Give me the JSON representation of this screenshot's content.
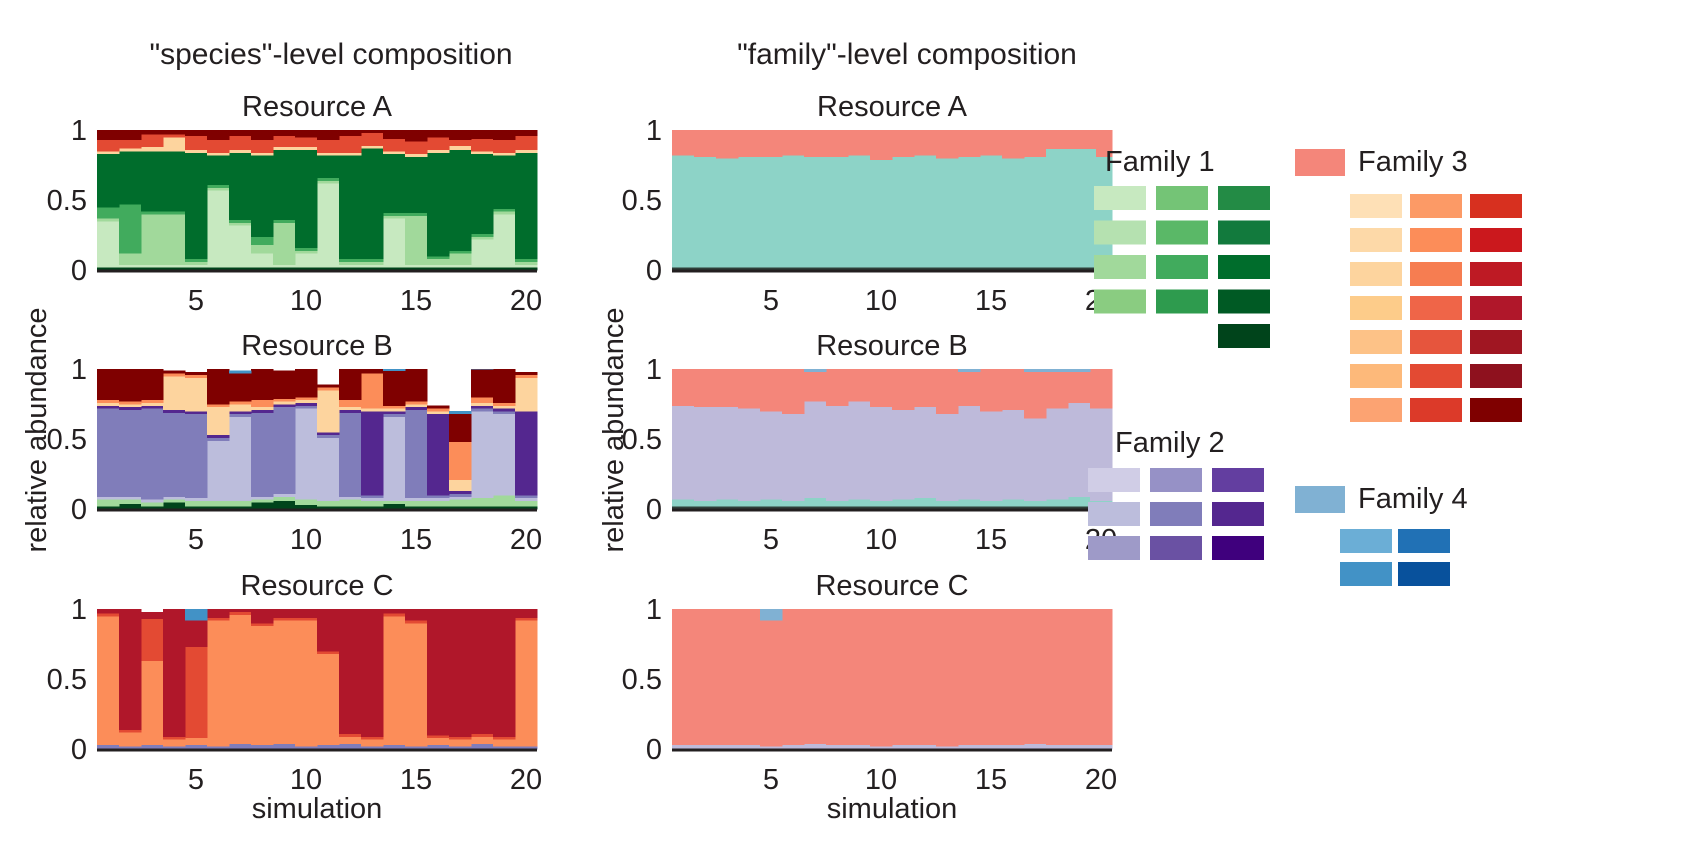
{
  "columns": [
    {
      "title": "\"species\"-level composition",
      "ylabel": "relative abundance",
      "xlabel": "simulation"
    },
    {
      "title": "\"family\"-level composition",
      "ylabel": "relative abundance",
      "xlabel": "simulation"
    }
  ],
  "yticks": [
    "0",
    "0.5",
    "1"
  ],
  "xticks": [
    "5",
    "10",
    "15",
    "20"
  ],
  "legend": {
    "families": [
      {
        "label": "Family 1",
        "color": "#8dd3c7",
        "swatch_columns": [
          [
            "#c7e9c0",
            "#b5e1b0",
            "#a1d99b",
            "#8acc81"
          ],
          [
            "#74c476",
            "#5ab867",
            "#41ab5d",
            "#2e9b4e"
          ],
          [
            "#238b45",
            "#127a3d",
            "#006d2c",
            "#005a24",
            "#00441b"
          ]
        ]
      },
      {
        "label": "Family 2",
        "color": "#bebada",
        "swatch_columns": [
          [
            "#d0cde6",
            "#bcbddc",
            "#9e9ac8"
          ],
          [
            "#9691c6",
            "#807dba",
            "#6a51a3"
          ],
          [
            "#633ea0",
            "#54278f",
            "#3f007d"
          ]
        ]
      },
      {
        "label": "Family 3",
        "color": "#f4867a",
        "swatch_columns": [
          [
            "#fee0b6",
            "#fdd9a8",
            "#fdd49e",
            "#fdcc8a",
            "#fdc287",
            "#fdb97a",
            "#fca372"
          ],
          [
            "#fc9a66",
            "#fc8d59",
            "#f67d51",
            "#ef6548",
            "#e6553d",
            "#e34a33",
            "#dc3a29"
          ],
          [
            "#d7301f",
            "#cb181d",
            "#be1a24",
            "#b0172a",
            "#a01622",
            "#8e111e",
            "#7f0000"
          ]
        ]
      },
      {
        "label": "Family 4",
        "color": "#80b1d3",
        "swatch_columns": [
          [
            "#6baed6",
            "#4292c6"
          ],
          [
            "#2171b5",
            "#08519c"
          ]
        ]
      }
    ]
  },
  "chart_data": [
    {
      "type": "area",
      "title": "Resource A",
      "column": 0,
      "row": 0,
      "xlabel": "",
      "ylabel": "relative abundance",
      "xlim": [
        0.5,
        20.5
      ],
      "ylim": [
        0,
        1
      ],
      "x": [
        1,
        2,
        3,
        4,
        5,
        6,
        7,
        8,
        9,
        10,
        11,
        12,
        13,
        14,
        15,
        16,
        17,
        18,
        19,
        20
      ],
      "series": [
        {
          "color": "#00441b",
          "values": [
            0.02,
            0.02,
            0.02,
            0.02,
            0.02,
            0.02,
            0.02,
            0.02,
            0.02,
            0.02,
            0.02,
            0.02,
            0.02,
            0.02,
            0.02,
            0.02,
            0.02,
            0.02,
            0.02,
            0.02
          ]
        },
        {
          "color": "#c7e9c0",
          "values": [
            0.33,
            0.02,
            0.02,
            0.02,
            0.02,
            0.55,
            0.3,
            0.1,
            0.02,
            0.1,
            0.6,
            0.02,
            0.02,
            0.35,
            0.02,
            0.02,
            0.02,
            0.2,
            0.38,
            0.02
          ]
        },
        {
          "color": "#a1d99b",
          "values": [
            0.02,
            0.08,
            0.36,
            0.36,
            0.02,
            0.02,
            0.02,
            0.06,
            0.3,
            0.02,
            0.02,
            0.02,
            0.02,
            0.02,
            0.35,
            0.04,
            0.08,
            0.02,
            0.02,
            0.02
          ]
        },
        {
          "color": "#41ab5d",
          "values": [
            0.08,
            0.35,
            0.02,
            0.02,
            0.02,
            0.02,
            0.02,
            0.06,
            0.02,
            0.02,
            0.02,
            0.02,
            0.02,
            0.02,
            0.02,
            0.02,
            0.02,
            0.02,
            0.02,
            0.02
          ]
        },
        {
          "color": "#006d2c",
          "values": [
            0.38,
            0.38,
            0.43,
            0.43,
            0.76,
            0.21,
            0.48,
            0.58,
            0.5,
            0.7,
            0.16,
            0.74,
            0.79,
            0.42,
            0.4,
            0.74,
            0.72,
            0.57,
            0.38,
            0.76
          ]
        },
        {
          "color": "#fdd49e",
          "values": [
            0.02,
            0.02,
            0.03,
            0.1,
            0.02,
            0.02,
            0.02,
            0.02,
            0.02,
            0.02,
            0.02,
            0.02,
            0.02,
            0.02,
            0.02,
            0.02,
            0.03,
            0.02,
            0.02,
            0.02
          ]
        },
        {
          "color": "#e34a33",
          "values": [
            0.08,
            0.06,
            0.09,
            0.02,
            0.1,
            0.09,
            0.1,
            0.09,
            0.08,
            0.07,
            0.09,
            0.12,
            0.09,
            0.09,
            0.09,
            0.09,
            0.04,
            0.09,
            0.09,
            0.1
          ]
        },
        {
          "color": "#7f0000",
          "values": [
            0.09,
            0.09,
            0.03,
            0.03,
            0.04,
            0.07,
            0.04,
            0.07,
            0.04,
            0.05,
            0.07,
            0.04,
            0.04,
            0.08,
            0.08,
            0.07,
            0.07,
            0.08,
            0.09,
            0.06
          ]
        }
      ]
    },
    {
      "type": "area",
      "title": "Resource B",
      "column": 0,
      "row": 1,
      "xlabel": "",
      "ylabel": "relative abundance",
      "xlim": [
        0.5,
        20.5
      ],
      "ylim": [
        0,
        1
      ],
      "x": [
        1,
        2,
        3,
        4,
        5,
        6,
        7,
        8,
        9,
        10,
        11,
        12,
        13,
        14,
        15,
        16,
        17,
        18,
        19,
        20
      ],
      "series": [
        {
          "color": "#00441b",
          "values": [
            0.02,
            0.04,
            0.02,
            0.05,
            0.02,
            0.02,
            0.02,
            0.05,
            0.06,
            0.03,
            0.02,
            0.02,
            0.02,
            0.04,
            0.02,
            0.02,
            0.02,
            0.02,
            0.02,
            0.02
          ]
        },
        {
          "color": "#a1d99b",
          "values": [
            0.05,
            0.03,
            0.03,
            0.02,
            0.04,
            0.04,
            0.04,
            0.02,
            0.03,
            0.04,
            0.04,
            0.05,
            0.04,
            0.02,
            0.04,
            0.04,
            0.05,
            0.06,
            0.08,
            0.04
          ]
        },
        {
          "color": "#bcbddc",
          "values": [
            0.02,
            0.02,
            0.02,
            0.02,
            0.02,
            0.43,
            0.6,
            0.02,
            0.02,
            0.65,
            0.45,
            0.02,
            0.02,
            0.6,
            0.02,
            0.02,
            0.02,
            0.62,
            0.58,
            0.02
          ]
        },
        {
          "color": "#807dba",
          "values": [
            0.63,
            0.62,
            0.65,
            0.6,
            0.6,
            0.02,
            0.02,
            0.6,
            0.62,
            0.02,
            0.02,
            0.6,
            0.02,
            0.02,
            0.63,
            0.02,
            0.02,
            0.02,
            0.02,
            0.02
          ]
        },
        {
          "color": "#54278f",
          "values": [
            0.02,
            0.02,
            0.02,
            0.02,
            0.02,
            0.02,
            0.02,
            0.02,
            0.02,
            0.02,
            0.02,
            0.02,
            0.6,
            0.02,
            0.02,
            0.58,
            0.02,
            0.02,
            0.02,
            0.6
          ]
        },
        {
          "color": "#fdd49e",
          "values": [
            0.02,
            0.02,
            0.02,
            0.24,
            0.24,
            0.2,
            0.05,
            0.02,
            0.02,
            0.02,
            0.3,
            0.02,
            0.02,
            0.02,
            0.02,
            0.02,
            0.08,
            0.02,
            0.02,
            0.24
          ]
        },
        {
          "color": "#fc8d59",
          "values": [
            0.02,
            0.02,
            0.02,
            0.02,
            0.02,
            0.02,
            0.02,
            0.05,
            0.02,
            0.02,
            0.02,
            0.05,
            0.25,
            0.02,
            0.02,
            0.02,
            0.27,
            0.04,
            0.02,
            0.02
          ]
        },
        {
          "color": "#7f0000",
          "values": [
            0.22,
            0.25,
            0.22,
            0.02,
            0.02,
            0.25,
            0.2,
            0.22,
            0.2,
            0.2,
            0.02,
            0.22,
            0.04,
            0.25,
            0.25,
            0.02,
            0.2,
            0.2,
            0.25,
            0.02
          ]
        },
        {
          "color": "#4292c6",
          "values": [
            0.0,
            0.0,
            0.0,
            0.0,
            0.0,
            0.0,
            0.02,
            0.0,
            0.0,
            0.0,
            0.0,
            0.0,
            0.0,
            0.02,
            0.0,
            0.0,
            0.02,
            0.02,
            0.01,
            0.0
          ]
        }
      ]
    },
    {
      "type": "area",
      "title": "Resource C",
      "column": 0,
      "row": 2,
      "xlabel": "simulation",
      "ylabel": "relative abundance",
      "xlim": [
        0.5,
        20.5
      ],
      "ylim": [
        0,
        1
      ],
      "x": [
        1,
        2,
        3,
        4,
        5,
        6,
        7,
        8,
        9,
        10,
        11,
        12,
        13,
        14,
        15,
        16,
        17,
        18,
        19,
        20
      ],
      "series": [
        {
          "color": "#807dba",
          "values": [
            0.03,
            0.02,
            0.03,
            0.02,
            0.03,
            0.02,
            0.04,
            0.03,
            0.04,
            0.02,
            0.03,
            0.04,
            0.02,
            0.03,
            0.02,
            0.03,
            0.02,
            0.04,
            0.02,
            0.02
          ]
        },
        {
          "color": "#fc8d59",
          "values": [
            0.92,
            0.1,
            0.6,
            0.05,
            0.05,
            0.9,
            0.92,
            0.85,
            0.88,
            0.9,
            0.65,
            0.05,
            0.05,
            0.92,
            0.88,
            0.05,
            0.05,
            0.05,
            0.05,
            0.9
          ]
        },
        {
          "color": "#e34a33",
          "values": [
            0.02,
            0.02,
            0.3,
            0.02,
            0.65,
            0.02,
            0.02,
            0.02,
            0.02,
            0.02,
            0.02,
            0.02,
            0.02,
            0.02,
            0.02,
            0.02,
            0.02,
            0.02,
            0.02,
            0.02
          ]
        },
        {
          "color": "#b0172a",
          "values": [
            0.03,
            0.86,
            0.05,
            0.91,
            0.19,
            0.06,
            0.02,
            0.1,
            0.06,
            0.06,
            0.3,
            0.89,
            0.91,
            0.03,
            0.08,
            0.92,
            0.91,
            0.89,
            0.93,
            0.06
          ]
        },
        {
          "color": "#4292c6",
          "values": [
            0.0,
            0.0,
            0.0,
            0.0,
            0.08,
            0.0,
            0.0,
            0.0,
            0.0,
            0.0,
            0.0,
            0.0,
            0.0,
            0.0,
            0.0,
            0.0,
            0.0,
            0.0,
            0.0,
            0.0
          ]
        }
      ]
    },
    {
      "type": "area",
      "title": "Resource A",
      "column": 1,
      "row": 0,
      "xlabel": "",
      "ylabel": "relative abundance",
      "xlim": [
        0.5,
        20.5
      ],
      "ylim": [
        0,
        1
      ],
      "x": [
        1,
        2,
        3,
        4,
        5,
        6,
        7,
        8,
        9,
        10,
        11,
        12,
        13,
        14,
        15,
        16,
        17,
        18,
        19,
        20
      ],
      "series": [
        {
          "color": "#2f3f3a",
          "values": [
            0.02,
            0.02,
            0.02,
            0.02,
            0.02,
            0.02,
            0.02,
            0.02,
            0.02,
            0.02,
            0.02,
            0.02,
            0.02,
            0.02,
            0.02,
            0.02,
            0.02,
            0.02,
            0.02,
            0.02
          ]
        },
        {
          "color": "#8dd3c7",
          "values": [
            0.8,
            0.79,
            0.78,
            0.79,
            0.79,
            0.8,
            0.79,
            0.79,
            0.8,
            0.77,
            0.79,
            0.8,
            0.78,
            0.79,
            0.8,
            0.78,
            0.79,
            0.78,
            0.8,
            0.79
          ]
        },
        {
          "color": "#f4867a",
          "values": [
            0.18,
            0.19,
            0.2,
            0.19,
            0.19,
            0.18,
            0.19,
            0.19,
            0.18,
            0.21,
            0.19,
            0.18,
            0.2,
            0.19,
            0.18,
            0.2,
            0.19,
            0.2,
            0.18,
            0.19
          ]
        }
      ]
    },
    {
      "type": "area",
      "title": "Resource B",
      "column": 1,
      "row": 1,
      "xlabel": "",
      "ylabel": "relative abundance",
      "xlim": [
        0.5,
        20.5
      ],
      "ylim": [
        0,
        1
      ],
      "x": [
        1,
        2,
        3,
        4,
        5,
        6,
        7,
        8,
        9,
        10,
        11,
        12,
        13,
        14,
        15,
        16,
        17,
        18,
        19,
        20
      ],
      "series": [
        {
          "color": "#2f3f3a",
          "values": [
            0.02,
            0.02,
            0.02,
            0.02,
            0.02,
            0.02,
            0.02,
            0.02,
            0.02,
            0.02,
            0.02,
            0.02,
            0.02,
            0.02,
            0.02,
            0.02,
            0.02,
            0.02,
            0.02,
            0.02
          ]
        },
        {
          "color": "#8dd3c7",
          "values": [
            0.05,
            0.04,
            0.05,
            0.04,
            0.05,
            0.04,
            0.06,
            0.04,
            0.05,
            0.04,
            0.05,
            0.06,
            0.04,
            0.05,
            0.04,
            0.05,
            0.04,
            0.05,
            0.07,
            0.04
          ]
        },
        {
          "color": "#bebada",
          "values": [
            0.67,
            0.67,
            0.66,
            0.66,
            0.63,
            0.62,
            0.69,
            0.68,
            0.7,
            0.67,
            0.64,
            0.65,
            0.62,
            0.67,
            0.64,
            0.64,
            0.59,
            0.65,
            0.67,
            0.66
          ]
        },
        {
          "color": "#f4867a",
          "values": [
            0.26,
            0.27,
            0.27,
            0.28,
            0.3,
            0.32,
            0.21,
            0.26,
            0.23,
            0.27,
            0.29,
            0.27,
            0.32,
            0.24,
            0.3,
            0.29,
            0.33,
            0.26,
            0.22,
            0.28
          ]
        },
        {
          "color": "#80b1d3",
          "values": [
            0.0,
            0.0,
            0.0,
            0.0,
            0.0,
            0.0,
            0.02,
            0.0,
            0.0,
            0.0,
            0.0,
            0.0,
            0.0,
            0.02,
            0.0,
            0.0,
            0.02,
            0.02,
            0.02,
            0.0
          ]
        }
      ]
    },
    {
      "type": "area",
      "title": "Resource C",
      "column": 1,
      "row": 2,
      "xlabel": "simulation",
      "ylabel": "relative abundance",
      "xlim": [
        0.5,
        20.5
      ],
      "ylim": [
        0,
        1
      ],
      "x": [
        1,
        2,
        3,
        4,
        5,
        6,
        7,
        8,
        9,
        10,
        11,
        12,
        13,
        14,
        15,
        16,
        17,
        18,
        19,
        20
      ],
      "series": [
        {
          "color": "#bebada",
          "values": [
            0.03,
            0.03,
            0.03,
            0.03,
            0.02,
            0.03,
            0.04,
            0.03,
            0.03,
            0.02,
            0.03,
            0.03,
            0.02,
            0.03,
            0.03,
            0.03,
            0.04,
            0.03,
            0.03,
            0.03
          ]
        },
        {
          "color": "#f4867a",
          "values": [
            0.97,
            0.97,
            0.97,
            0.97,
            0.9,
            0.97,
            0.96,
            0.97,
            0.97,
            0.98,
            0.97,
            0.97,
            0.98,
            0.97,
            0.97,
            0.97,
            0.96,
            0.97,
            0.97,
            0.97
          ]
        },
        {
          "color": "#80b1d3",
          "values": [
            0.0,
            0.0,
            0.0,
            0.0,
            0.08,
            0.0,
            0.0,
            0.0,
            0.0,
            0.0,
            0.0,
            0.0,
            0.0,
            0.0,
            0.0,
            0.0,
            0.0,
            0.0,
            0.0,
            0.0
          ]
        }
      ]
    }
  ]
}
